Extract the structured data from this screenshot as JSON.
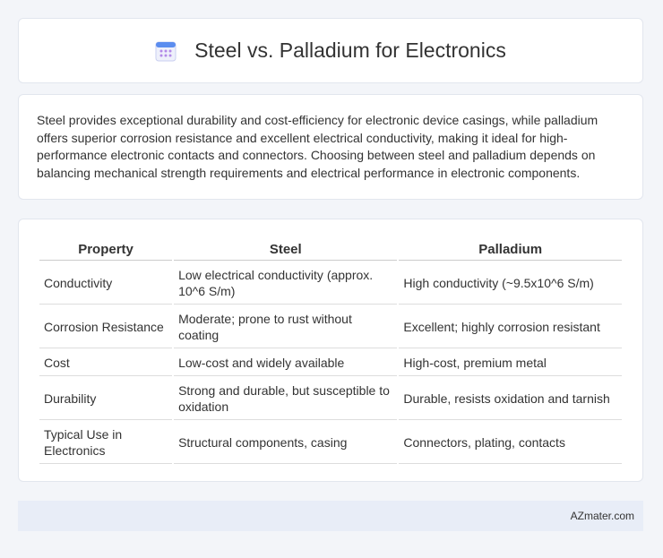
{
  "header": {
    "title": "Steel vs. Palladium for Electronics"
  },
  "intro": "Steel provides exceptional durability and cost-efficiency for electronic device casings, while palladium offers superior corrosion resistance and excellent electrical conductivity, making it ideal for high-performance electronic contacts and connectors. Choosing between steel and palladium depends on balancing mechanical strength requirements and electrical performance in electronic components.",
  "table": {
    "columns": [
      "Property",
      "Steel",
      "Palladium"
    ],
    "rows": [
      [
        "Conductivity",
        "Low electrical conductivity (approx. 10^6 S/m)",
        "High conductivity (~9.5x10^6 S/m)"
      ],
      [
        "Corrosion Resistance",
        "Moderate; prone to rust without coating",
        "Excellent; highly corrosion resistant"
      ],
      [
        "Cost",
        "Low-cost and widely available",
        "High-cost, premium metal"
      ],
      [
        "Durability",
        "Strong and durable, but susceptible to oxidation",
        "Durable, resists oxidation and tarnish"
      ],
      [
        "Typical Use in Electronics",
        "Structural components, casing",
        "Connectors, plating, contacts"
      ]
    ]
  },
  "footer": "AZmater.com"
}
